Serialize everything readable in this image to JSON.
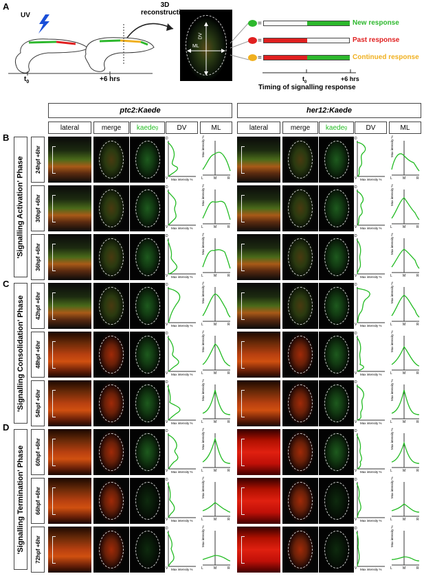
{
  "panel_a": {
    "letter": "A",
    "uv_label": "UV",
    "reconstruction_label": "3D\nreconstruction",
    "t0_label": "t",
    "t0_sub": "0",
    "plus6_label": "+6 hrs",
    "dv_label": "DV",
    "ml_label": "ML",
    "legend": [
      {
        "label": "New response",
        "color": "#2db82d"
      },
      {
        "label": "Past response",
        "color": "#e02020"
      },
      {
        "label": "Continued response",
        "color": "#f0b020"
      }
    ],
    "timeline_t0": "t",
    "timeline_t0_sub": "0",
    "timeline_plus6": "+6 hrs",
    "timeline_caption": "Timing of signalling response"
  },
  "headers": {
    "ptc2": "ptc2:Kaede",
    "her12": "her12:Kaede",
    "columns": [
      "lateral",
      "merge",
      "kaede",
      "DV",
      "ML"
    ],
    "kaede_sup": "g"
  },
  "phases": [
    {
      "letter": "B",
      "label": "'Signalling Activation' Phase",
      "times": [
        "24hpf +6hr",
        "30hpf +6hr",
        "36hpf +6hr"
      ]
    },
    {
      "letter": "C",
      "label": "'Signalling Consolidation' Phase",
      "times": [
        "42hpf +6hr",
        "48hpf +6hr",
        "54hpf +6hr"
      ]
    },
    {
      "letter": "D",
      "label": "'Signalling Termination' Phase",
      "times": [
        "60hpf +6hr",
        "66hpf +6hr",
        "72hpf +6hr"
      ]
    }
  ],
  "plot_labels": {
    "dv_x": "Max intensity %",
    "dv_top": "D",
    "dv_bottom": "V",
    "ml_y": "Max intensity %",
    "ml_ticks": [
      "L",
      "M",
      "R"
    ]
  },
  "colors": {
    "green": "#22bb22",
    "red": "#e02020",
    "yellow": "#f0b020"
  }
}
